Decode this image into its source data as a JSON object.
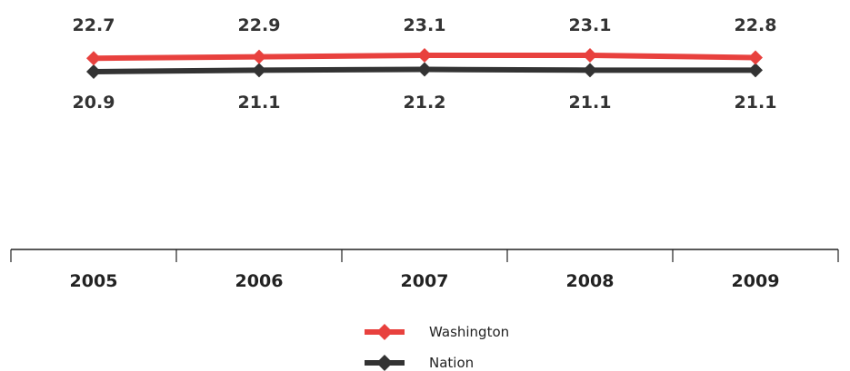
{
  "chart_data": {
    "type": "line",
    "categories": [
      "2005",
      "2006",
      "2007",
      "2008",
      "2009"
    ],
    "series": [
      {
        "name": "Washington",
        "values": [
          22.7,
          22.9,
          23.1,
          23.1,
          22.8
        ],
        "color": "#e8413e"
      },
      {
        "name": "Nation",
        "values": [
          20.9,
          21.1,
          21.2,
          21.1,
          21.1
        ],
        "color": "#333333"
      }
    ],
    "data_labels": {
      "Washington": [
        "22.7",
        "22.9",
        "23.1",
        "23.1",
        "22.8"
      ],
      "Nation": [
        "20.9",
        "21.1",
        "21.2",
        "21.1",
        "21.1"
      ]
    },
    "marker": "diamond",
    "legend_position": "bottom-center",
    "grid": false
  }
}
